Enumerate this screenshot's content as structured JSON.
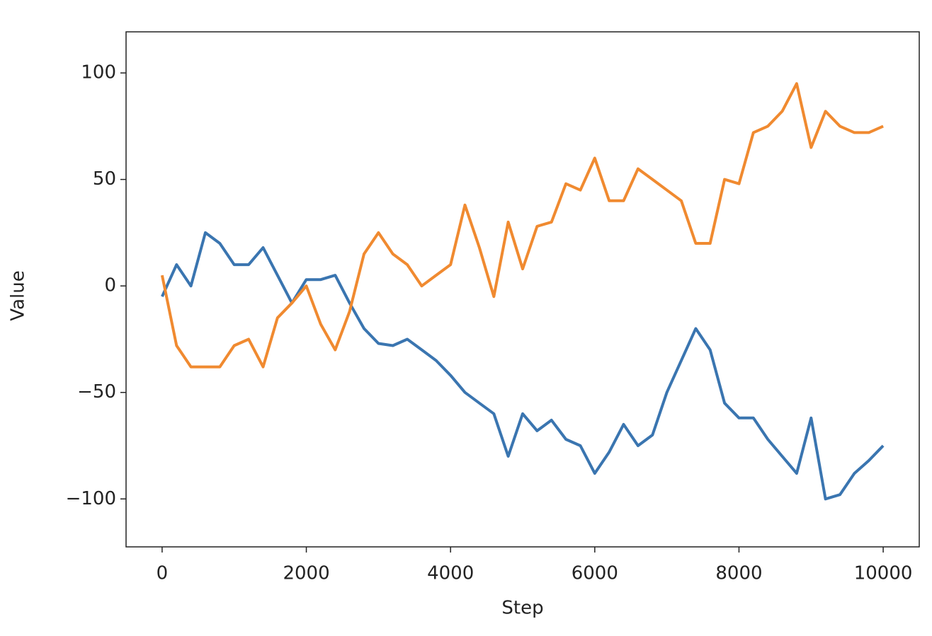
{
  "chart_data": {
    "type": "line",
    "xlabel": "Step",
    "ylabel": "Value",
    "x": [
      0,
      200,
      400,
      600,
      800,
      1000,
      1200,
      1400,
      1600,
      1800,
      2000,
      2200,
      2400,
      2600,
      2800,
      3000,
      3200,
      3400,
      3600,
      3800,
      4000,
      4200,
      4400,
      4600,
      4800,
      5000,
      5200,
      5400,
      5600,
      5800,
      6000,
      6200,
      6400,
      6600,
      6800,
      7000,
      7200,
      7400,
      7600,
      7800,
      8000,
      8200,
      8400,
      8600,
      8800,
      9000,
      9200,
      9400,
      9600,
      9800,
      10000
    ],
    "series": [
      {
        "color": "#3a75b0",
        "values": [
          -5,
          10,
          0,
          25,
          20,
          10,
          10,
          18,
          5,
          -8,
          3,
          3,
          5,
          -8,
          -20,
          -27,
          -28,
          -25,
          -30,
          -35,
          -42,
          -50,
          -55,
          -60,
          -80,
          -60,
          -68,
          -63,
          -72,
          -75,
          -88,
          -78,
          -65,
          -75,
          -70,
          -50,
          -35,
          -20,
          -30,
          -55,
          -62,
          -62,
          -72,
          -80,
          -88,
          -62,
          -100,
          -98,
          -88,
          -82,
          -75
        ]
      },
      {
        "color": "#f08a30",
        "values": [
          5,
          -28,
          -38,
          -38,
          -38,
          -28,
          -25,
          -38,
          -15,
          -8,
          0,
          -18,
          -30,
          -12,
          15,
          25,
          15,
          10,
          0,
          5,
          10,
          38,
          18,
          -5,
          30,
          8,
          28,
          30,
          48,
          45,
          60,
          40,
          40,
          55,
          50,
          45,
          40,
          20,
          20,
          50,
          48,
          72,
          75,
          82,
          95,
          65,
          82,
          75,
          72,
          72,
          75
        ]
      }
    ],
    "xlim": [
      -500,
      10500
    ],
    "ylim": [
      -122.5,
      119.3
    ],
    "xticks": [
      0,
      2000,
      4000,
      6000,
      8000,
      10000
    ],
    "yticks": [
      {
        "value": -100,
        "label": "−100"
      },
      {
        "value": -50,
        "label": "−50"
      },
      0,
      50,
      100
    ]
  }
}
